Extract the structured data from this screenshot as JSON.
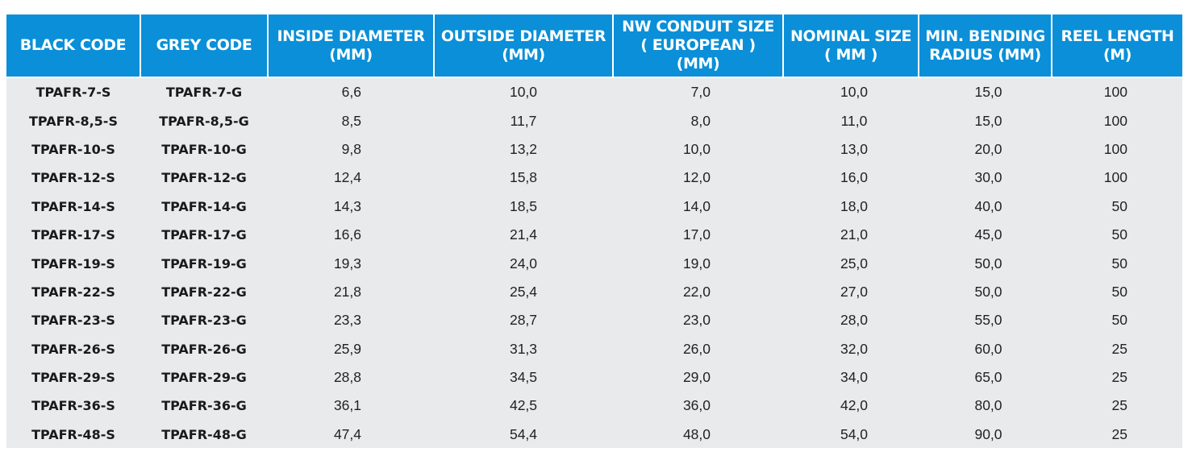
{
  "table": {
    "headers": [
      "BLACK CODE",
      "GREY CODE",
      "INSIDE DIAMETER (MM)",
      "OUTSIDE DIAMETER (MM)",
      "NW CONDUIT SIZE ( EUROPEAN ) (MM)",
      "NOMINAL SIZE ( MM )",
      "MIN. BENDING RADIUS (MM)",
      "REEL LENGTH (M)"
    ],
    "header_lines": [
      [
        "BLACK CODE"
      ],
      [
        "GREY CODE"
      ],
      [
        "INSIDE DIAMETER",
        "(MM)"
      ],
      [
        "OUTSIDE DIAMETER",
        "(MM)"
      ],
      [
        "NW CONDUIT SIZE",
        "( EUROPEAN ) (MM)"
      ],
      [
        "NOMINAL SIZE",
        "( MM )"
      ],
      [
        "MIN. BENDING",
        "RADIUS (MM)"
      ],
      [
        "REEL LENGTH",
        "(M)"
      ]
    ],
    "rows": [
      [
        "TPAFR-7-S",
        "TPAFR-7-G",
        "6,6",
        "10,0",
        "7,0",
        "10,0",
        "15,0",
        "100"
      ],
      [
        "TPAFR-8,5-S",
        "TPAFR-8,5-G",
        "8,5",
        "11,7",
        "8,0",
        "11,0",
        "15,0",
        "100"
      ],
      [
        "TPAFR-10-S",
        "TPAFR-10-G",
        "9,8",
        "13,2",
        "10,0",
        "13,0",
        "20,0",
        "100"
      ],
      [
        "TPAFR-12-S",
        "TPAFR-12-G",
        "12,4",
        "15,8",
        "12,0",
        "16,0",
        "30,0",
        "100"
      ],
      [
        "TPAFR-14-S",
        "TPAFR-14-G",
        "14,3",
        "18,5",
        "14,0",
        "18,0",
        "40,0",
        "50"
      ],
      [
        "TPAFR-17-S",
        "TPAFR-17-G",
        "16,6",
        "21,4",
        "17,0",
        "21,0",
        "45,0",
        "50"
      ],
      [
        "TPAFR-19-S",
        "TPAFR-19-G",
        "19,3",
        "24,0",
        "19,0",
        "25,0",
        "50,0",
        "50"
      ],
      [
        "TPAFR-22-S",
        "TPAFR-22-G",
        "21,8",
        "25,4",
        "22,0",
        "27,0",
        "50,0",
        "50"
      ],
      [
        "TPAFR-23-S",
        "TPAFR-23-G",
        "23,3",
        "28,7",
        "23,0",
        "28,0",
        "55,0",
        "50"
      ],
      [
        "TPAFR-26-S",
        "TPAFR-26-G",
        "25,9",
        "31,3",
        "26,0",
        "32,0",
        "60,0",
        "25"
      ],
      [
        "TPAFR-29-S",
        "TPAFR-29-G",
        "28,8",
        "34,5",
        "29,0",
        "34,0",
        "65,0",
        "25"
      ],
      [
        "TPAFR-36-S",
        "TPAFR-36-G",
        "36,1",
        "42,5",
        "36,0",
        "42,0",
        "80,0",
        "25"
      ],
      [
        "TPAFR-48-S",
        "TPAFR-48-G",
        "47,4",
        "54,4",
        "48,0",
        "54,0",
        "90,0",
        "25"
      ]
    ]
  },
  "colors": {
    "header_bg": "#0a8fd8",
    "header_text": "#ffffff",
    "body_bg": "#e9eaec",
    "body_text": "#222222"
  }
}
